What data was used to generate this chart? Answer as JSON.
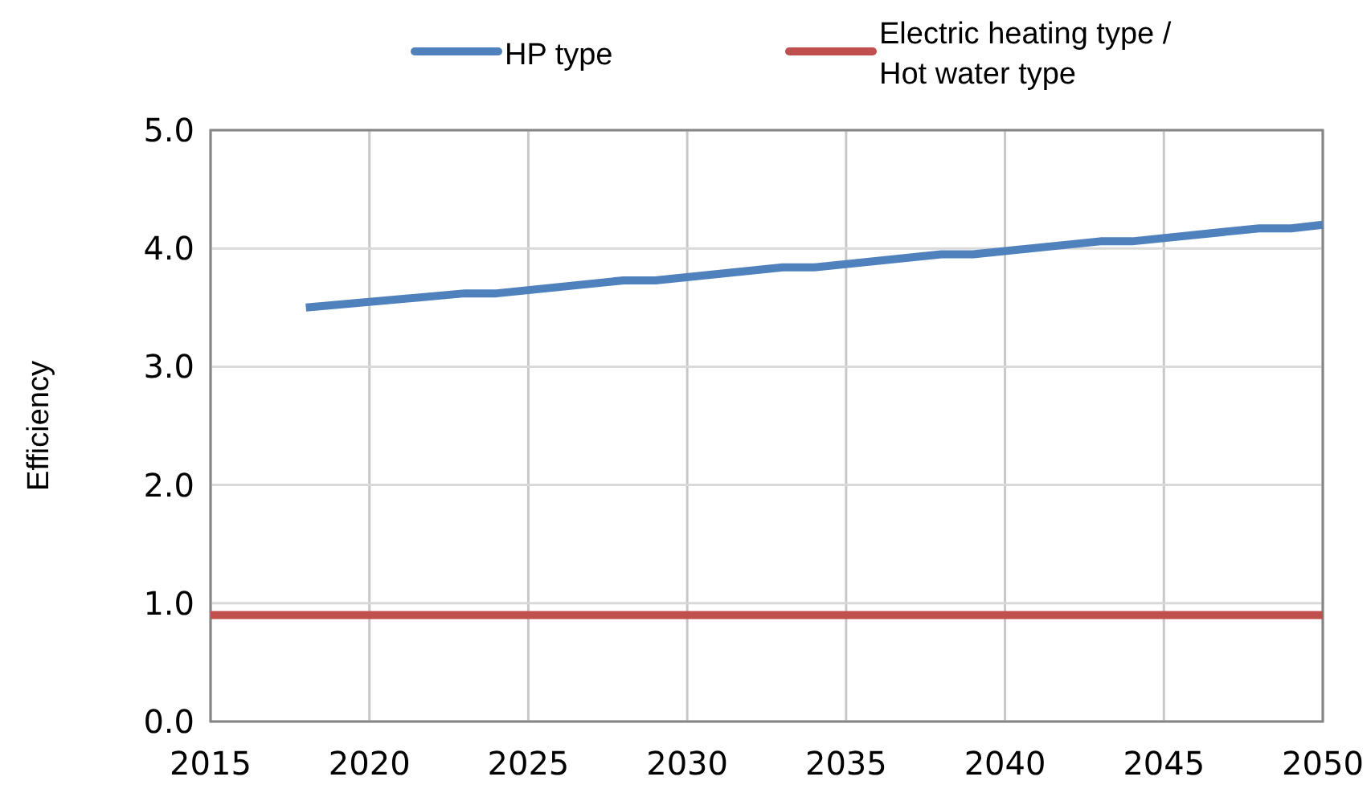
{
  "chart_data": {
    "type": "line",
    "ylabel": "Efficiency",
    "xlim": [
      2015,
      2050
    ],
    "xticks": [
      2015,
      2020,
      2025,
      2030,
      2035,
      2040,
      2045,
      2050
    ],
    "ylim": [
      0,
      5
    ],
    "yticks": [
      {
        "value": 0,
        "label": "0.0"
      },
      {
        "value": 1,
        "label": "1.0"
      },
      {
        "value": 2,
        "label": "2.0"
      },
      {
        "value": 3,
        "label": "3.0"
      },
      {
        "value": 4,
        "label": "4.0"
      },
      {
        "value": 5,
        "label": "5.0"
      }
    ],
    "grid": true,
    "legend": "top",
    "marker": "none",
    "line_style": "solid",
    "series": [
      {
        "name": "HP type",
        "color": "#4f81bd",
        "x": [
          2018,
          2023,
          2024,
          2028,
          2029,
          2033,
          2034,
          2038,
          2039,
          2043,
          2044,
          2048,
          2049,
          2050
        ],
        "values": [
          3.5,
          3.62,
          3.62,
          3.73,
          3.73,
          3.84,
          3.84,
          3.95,
          3.95,
          4.06,
          4.06,
          4.17,
          4.17,
          4.2
        ]
      },
      {
        "name": "Electric heating type / Hot water type",
        "color": "#c0504d",
        "x": [
          2015,
          2050
        ],
        "values": [
          0.9,
          0.9
        ]
      }
    ]
  }
}
